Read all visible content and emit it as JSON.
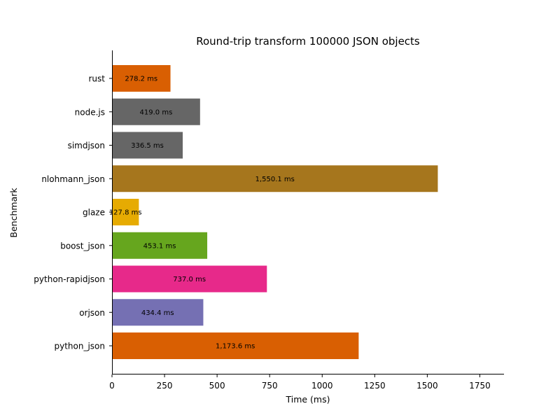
{
  "chart_data": {
    "type": "bar",
    "orientation": "horizontal",
    "title": "Round-trip transform 100000 JSON objects",
    "xlabel": "Time (ms)",
    "ylabel": "Benchmark",
    "xlim": [
      0,
      1865
    ],
    "xticks": [
      0,
      250,
      500,
      750,
      1000,
      1250,
      1500,
      1750
    ],
    "grid": false,
    "categories": [
      "rust",
      "node.js",
      "simdjson",
      "nlohmann_json",
      "glaze",
      "boost_json",
      "python-rapidjson",
      "orjson",
      "python_json"
    ],
    "values": [
      278.2,
      419.0,
      336.5,
      1550.1,
      127.8,
      453.1,
      737.0,
      434.4,
      1173.6
    ],
    "value_labels": [
      "278.2 ms",
      "419.0 ms",
      "336.5 ms",
      "1,550.1 ms",
      "127.8 ms",
      "453.1 ms",
      "737.0 ms",
      "434.4 ms",
      "1,173.6 ms"
    ],
    "colors": [
      "#d95f02",
      "#666666",
      "#666666",
      "#a6761d",
      "#e6ab02",
      "#66a61e",
      "#e7298a",
      "#7570b3",
      "#d95f02"
    ]
  }
}
